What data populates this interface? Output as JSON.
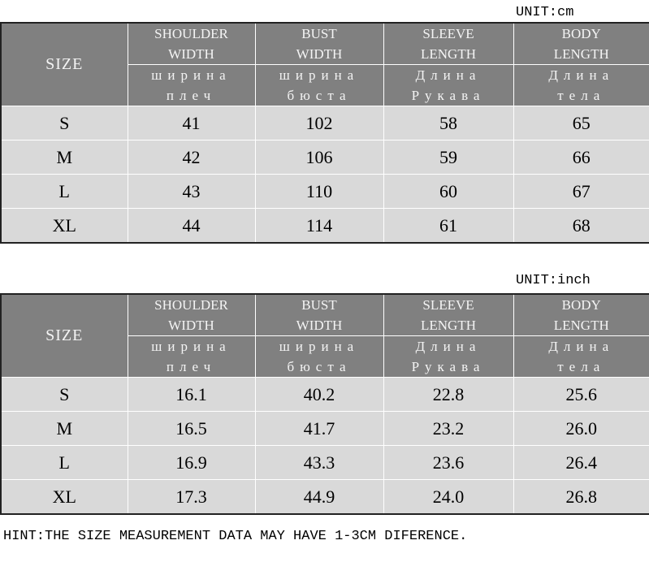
{
  "tables": [
    {
      "unit": "UNIT:cm",
      "size_label": "SIZE",
      "columns": [
        {
          "en": [
            "SHOULDER",
            "WIDTH"
          ],
          "ru": [
            "ширина",
            "плеч"
          ]
        },
        {
          "en": [
            "BUST",
            "WIDTH"
          ],
          "ru": [
            "ширина",
            "бюста"
          ]
        },
        {
          "en": [
            "SLEEVE",
            "LENGTH"
          ],
          "ru": [
            "Длина",
            "Рукава"
          ]
        },
        {
          "en": [
            "BODY",
            "LENGTH"
          ],
          "ru": [
            "Длина",
            "тела"
          ]
        }
      ],
      "rows": [
        [
          "S",
          "41",
          "102",
          "58",
          "65"
        ],
        [
          "M",
          "42",
          "106",
          "59",
          "66"
        ],
        [
          "L",
          "43",
          "110",
          "60",
          "67"
        ],
        [
          "XL",
          "44",
          "114",
          "61",
          "68"
        ]
      ]
    },
    {
      "unit": "UNIT:inch",
      "size_label": "SIZE",
      "columns": [
        {
          "en": [
            "SHOULDER",
            "WIDTH"
          ],
          "ru": [
            "ширина",
            "плеч"
          ]
        },
        {
          "en": [
            "BUST",
            "WIDTH"
          ],
          "ru": [
            "ширина",
            "бюста"
          ]
        },
        {
          "en": [
            "SLEEVE",
            "LENGTH"
          ],
          "ru": [
            "Длина",
            "Рукава"
          ]
        },
        {
          "en": [
            "BODY",
            "LENGTH"
          ],
          "ru": [
            "Длина",
            "тела"
          ]
        }
      ],
      "rows": [
        [
          "S",
          "16.1",
          "40.2",
          "22.8",
          "25.6"
        ],
        [
          "M",
          "16.5",
          "41.7",
          "23.2",
          "26.0"
        ],
        [
          "L",
          "16.9",
          "43.3",
          "23.6",
          "26.4"
        ],
        [
          "XL",
          "17.3",
          "44.9",
          "24.0",
          "26.8"
        ]
      ]
    }
  ],
  "hint": "HINT:THE SIZE MEASUREMENT DATA MAY HAVE 1-3CM DIFERENCE."
}
